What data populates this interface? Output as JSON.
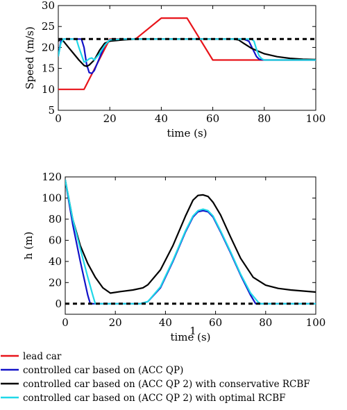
{
  "colors": {
    "lead": "#e8141a",
    "acc_qp": "#1212c8",
    "acc_qp2_conservative": "#000000",
    "acc_qp2_optimal": "#20d8e8",
    "reference": "#000000"
  },
  "page_note": "1",
  "legend": [
    {
      "key": "lead",
      "label": "lead car"
    },
    {
      "key": "acc_qp",
      "label": "controlled car based on (ACC QP)"
    },
    {
      "key": "acc_qp2_conservative",
      "label": "controlled car based on (ACC QP 2) with conservative RCBF"
    },
    {
      "key": "acc_qp2_optimal",
      "label": "controlled car based on (ACC QP 2) with optimal RCBF"
    }
  ],
  "chart_data": [
    {
      "type": "line",
      "xlabel": "time (s)",
      "ylabel": "Speed (m/s)",
      "xlim": [
        0,
        100
      ],
      "ylim": [
        5,
        30
      ],
      "xticks": [
        "0",
        "20",
        "40",
        "60",
        "80",
        "100"
      ],
      "yticks": [
        "5",
        "10",
        "15",
        "20",
        "25",
        "30"
      ],
      "grid": false,
      "series": [
        {
          "key": "lead",
          "x": [
            0,
            10,
            20,
            30,
            40,
            50,
            60,
            70,
            80,
            100
          ],
          "y": [
            10,
            10,
            22,
            22,
            27,
            27,
            17,
            17,
            17,
            17
          ]
        },
        {
          "key": "acc_qp",
          "x": [
            0,
            1,
            2,
            9,
            10,
            11,
            12,
            13,
            14,
            16,
            18,
            20,
            25,
            30,
            40,
            70,
            72,
            74,
            76,
            77,
            78,
            80,
            100
          ],
          "y": [
            18,
            21.5,
            22,
            22,
            20,
            16,
            14,
            13.8,
            14.5,
            17.5,
            20.5,
            21.8,
            22,
            22,
            22,
            22,
            22,
            21.5,
            19,
            17.8,
            17.2,
            17,
            17
          ]
        },
        {
          "key": "acc_qp2_conservative",
          "x": [
            0,
            1,
            2,
            4,
            6,
            8,
            10,
            11,
            12,
            14,
            16,
            18,
            20,
            25,
            30,
            40,
            65,
            68,
            70,
            72,
            75,
            80,
            85,
            90,
            95,
            100
          ],
          "y": [
            21.5,
            22,
            21.5,
            20,
            18.5,
            17,
            15.7,
            15.5,
            15.8,
            17,
            19.3,
            21,
            21.5,
            21.8,
            22,
            22,
            22,
            22,
            21.8,
            21,
            19.8,
            18.5,
            17.8,
            17.4,
            17.2,
            17.1
          ]
        },
        {
          "key": "acc_qp2_optimal",
          "x": [
            0,
            1,
            2,
            3,
            5,
            7,
            8,
            10,
            11,
            12,
            13,
            14,
            16,
            18,
            20,
            25,
            30,
            40,
            75,
            76,
            77,
            78,
            79,
            80,
            100
          ],
          "y": [
            18,
            21,
            22,
            22,
            22,
            22,
            20,
            16.5,
            16.8,
            17.3,
            17.5,
            17,
            18.5,
            20.5,
            21.8,
            22,
            22,
            22,
            22,
            21.5,
            19.5,
            18,
            17.3,
            17,
            17
          ]
        },
        {
          "key": "reference",
          "style": "dashed",
          "x": [
            0,
            100
          ],
          "y": [
            22,
            22
          ]
        }
      ]
    },
    {
      "type": "line",
      "xlabel": "time (s)",
      "ylabel": "h (m)",
      "xlim": [
        0,
        100
      ],
      "ylim": [
        -10,
        120
      ],
      "xticks": [
        "0",
        "20",
        "40",
        "60",
        "80",
        "100"
      ],
      "yticks": [
        "0",
        "20",
        "40",
        "60",
        "80",
        "100",
        "120"
      ],
      "grid": false,
      "series": [
        {
          "key": "acc_qp",
          "x": [
            0,
            3,
            6,
            9,
            10,
            11,
            30,
            33,
            38,
            43,
            48,
            51,
            53,
            55,
            57,
            59,
            62,
            66,
            70,
            74,
            76,
            77,
            100
          ],
          "y": [
            117,
            75,
            40,
            8,
            0,
            0,
            0,
            2,
            15,
            40,
            68,
            82,
            87,
            88,
            87,
            82,
            68,
            48,
            27,
            8,
            0,
            0,
            0
          ]
        },
        {
          "key": "acc_qp2_conservative",
          "x": [
            0,
            3,
            6,
            9,
            12,
            15,
            18,
            22,
            27,
            31,
            33,
            38,
            43,
            48,
            51,
            53,
            55,
            57,
            59,
            62,
            66,
            70,
            75,
            80,
            85,
            90,
            95,
            100
          ],
          "y": [
            117,
            80,
            55,
            38,
            25,
            15,
            10,
            11.5,
            13,
            15,
            18,
            32,
            55,
            83,
            98,
            102.5,
            103,
            101.5,
            96,
            84,
            63,
            43,
            25,
            17.5,
            14.5,
            13,
            12,
            11
          ]
        },
        {
          "key": "acc_qp2_optimal",
          "x": [
            0,
            3,
            6,
            9,
            11,
            12,
            30,
            33,
            38,
            43,
            48,
            51,
            53,
            55,
            57,
            59,
            62,
            66,
            70,
            74,
            77,
            78,
            100
          ],
          "y": [
            117,
            80,
            52,
            25,
            8,
            0,
            0,
            2,
            16,
            41,
            69,
            83,
            88,
            89.5,
            88,
            83,
            69,
            49,
            28,
            10,
            1.5,
            0,
            0
          ]
        },
        {
          "key": "reference",
          "style": "dashed",
          "x": [
            0,
            100
          ],
          "y": [
            0,
            0
          ]
        }
      ]
    }
  ]
}
